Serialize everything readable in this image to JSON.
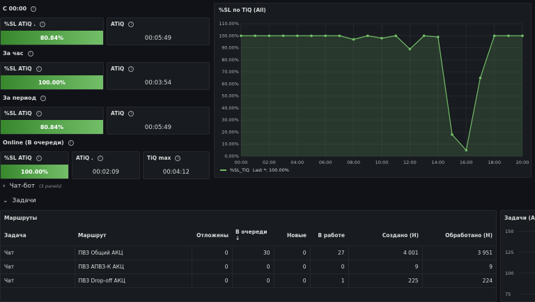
{
  "rows": {
    "c0000": "С 00:00",
    "hour": "За час",
    "period": "За период",
    "online": "Online (В очереди)"
  },
  "stats": {
    "sl_label": "%SL ATiQ",
    "sl_label_dot": "%SL ATiQ .",
    "atiq_label": "ATiQ",
    "atiq_label_dot": "ATiQ .",
    "tiq_max_label": "TiQ max",
    "c0000": {
      "sl": "80.84%",
      "atiq": "00:05:49"
    },
    "hour": {
      "sl": "100.00%",
      "atiq": "00:03:54"
    },
    "period": {
      "sl": "80.84%",
      "atiq": "00:05:49"
    },
    "online": {
      "sl": "100.00%",
      "atiq": "00:02:09",
      "tiq_max": "00:04:12"
    }
  },
  "chart": {
    "title": "%SL по TiQ (All)",
    "legend": "%SL_TiQ",
    "legend_last": "Last *: 100.00%",
    "color": "#73bf69"
  },
  "chart_data": {
    "type": "area",
    "title": "%SL по TiQ (All)",
    "x_ticks": [
      "00:00",
      "02:00",
      "04:00",
      "06:00",
      "08:00",
      "10:00",
      "12:00",
      "14:00",
      "16:00",
      "18:00",
      "20:00"
    ],
    "y_ticks": [
      "0.00%",
      "10.00%",
      "20.00%",
      "30.00%",
      "40.00%",
      "50.00%",
      "60.00%",
      "70.00%",
      "80.00%",
      "90.00%",
      "100.00%",
      "110.00%"
    ],
    "ylim": [
      0,
      110
    ],
    "xlim_hours": [
      0,
      20
    ],
    "grid": true,
    "legend_position": "bottom-left",
    "series": [
      {
        "name": "%SL_TiQ",
        "x": [
          0,
          1,
          2,
          3,
          4,
          5,
          6,
          7,
          8,
          9,
          10,
          11,
          12,
          13,
          14,
          15,
          16,
          17,
          18,
          19,
          20
        ],
        "values": [
          100,
          100,
          100,
          100,
          100,
          100,
          100,
          100,
          97,
          100,
          98,
          100,
          89,
          100,
          99,
          18,
          5,
          65,
          100,
          100,
          100
        ]
      }
    ]
  },
  "sections": {
    "chatbot": "Чат-бот",
    "chatbot_note": "(3 panels)",
    "tasks": "Задачи"
  },
  "routes": {
    "title": "Маршруты",
    "columns": [
      "Задача",
      "Маршрут",
      "Отложены",
      "В очереди",
      "Новые",
      "В работе",
      "Создано (Н)",
      "Обработано (Н)"
    ],
    "rows": [
      [
        "Чат",
        "ПВЗ Общий АКЦ",
        "0",
        "30",
        "0",
        "27",
        "4 001",
        "3 951"
      ],
      [
        "Чат",
        "ПВЗ АПВЗ-К АКЦ",
        "0",
        "0",
        "0",
        "0",
        "9",
        "9"
      ],
      [
        "Чат",
        "ПВЗ Drop-off АКЦ",
        "0",
        "0",
        "0",
        "1",
        "225",
        "224"
      ]
    ]
  },
  "tasks_panel": {
    "title": "Задачи (All)",
    "y_ticks": [
      "150",
      "125",
      "100",
      "75"
    ]
  }
}
